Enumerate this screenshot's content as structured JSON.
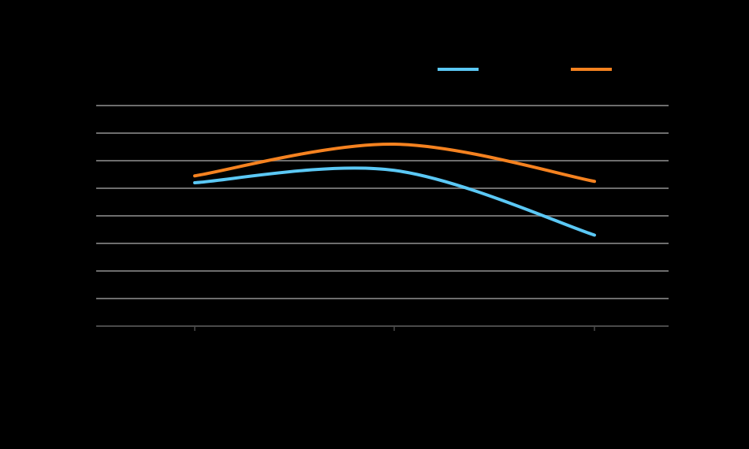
{
  "chart_data": {
    "type": "line",
    "x": [
      1,
      2,
      3
    ],
    "ylim": [
      0,
      8
    ],
    "grid": true,
    "legend_position": "top-right",
    "smooth": true,
    "series": [
      {
        "color": "#5BC8F5",
        "values": [
          5.2,
          5.65,
          3.3
        ]
      },
      {
        "color": "#F58220",
        "values": [
          5.45,
          6.6,
          5.25
        ]
      }
    ]
  }
}
